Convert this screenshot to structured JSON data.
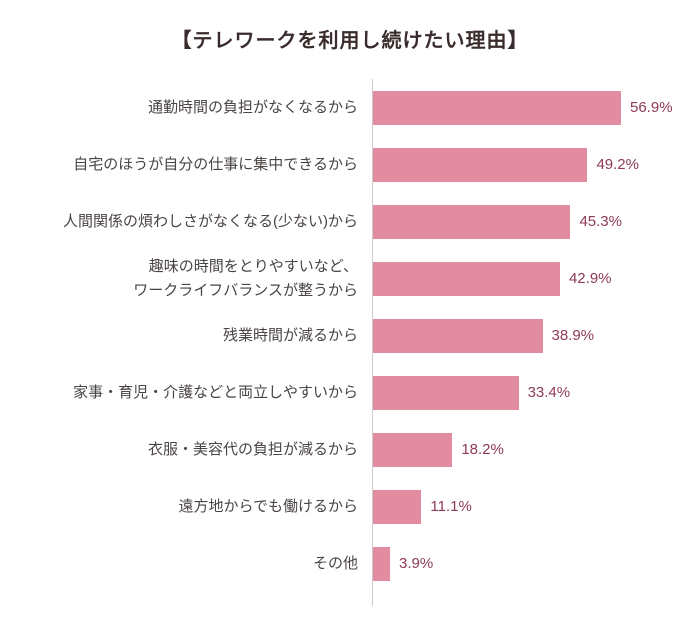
{
  "title": "【テレワークを利用し続けたい理由】",
  "chart_data": {
    "type": "bar",
    "orientation": "horizontal",
    "title": "【テレワークを利用し続けたい理由】",
    "categories": [
      "通勤時間の負担がなくなるから",
      "自宅のほうが自分の仕事に集中できるから",
      "人間関係の煩わしさがなくなる(少ない)から",
      "趣味の時間をとりやすいなど、\nワークライフバランスが整うから",
      "残業時間が減るから",
      "家事・育児・介護などと両立しやすいから",
      "衣服・美容代の負担が減るから",
      "遠方地からでも働けるから",
      "その他"
    ],
    "values": [
      56.9,
      49.2,
      45.3,
      42.9,
      38.9,
      33.4,
      18.2,
      11.1,
      3.9
    ],
    "value_labels": [
      "56.9%",
      "49.2%",
      "45.3%",
      "42.9%",
      "38.9%",
      "33.4%",
      "18.2%",
      "11.1%",
      "3.9%"
    ],
    "xlim": [
      0,
      60
    ],
    "grid": false,
    "legend": "none",
    "bar_color": "#e28ba1",
    "value_label_color": "#8d3a55",
    "axis_line_color": "#cccccc"
  }
}
